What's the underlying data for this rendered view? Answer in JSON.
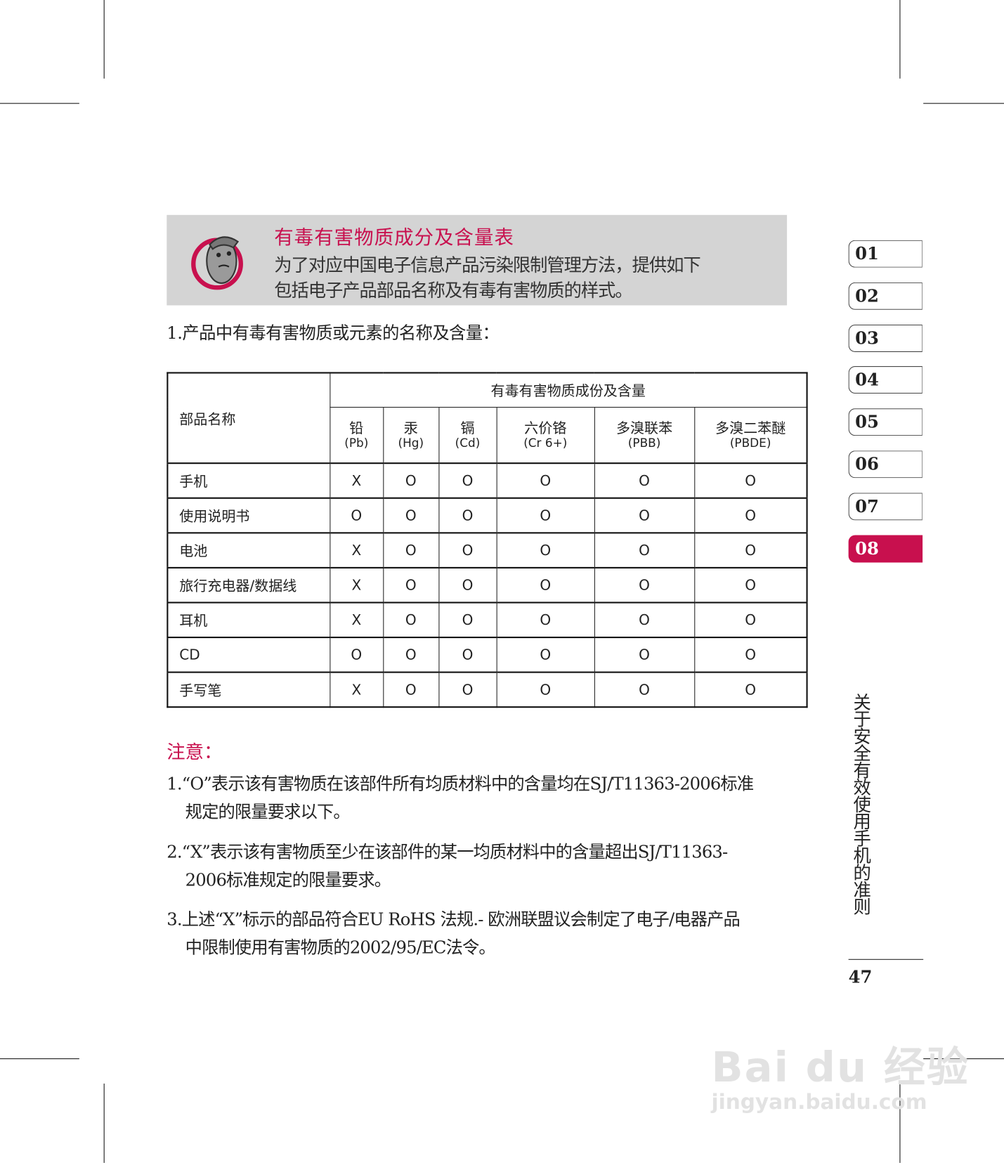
{
  "banner": {
    "title": "有毒有害物质成分及含量表",
    "line1": "为了对应中国电子信息产品污染限制管理方法，提供如下",
    "line2": "包括电子产品部品名称及有毒有害物质的样式。",
    "accent_color": "#c8104e"
  },
  "section_heading": "1.产品中有毒有害物质或元素的名称及含量：",
  "table": {
    "part_header": "部品名称",
    "group_header": "有毒有害物质成份及含量",
    "columns": [
      {
        "cn": "铅",
        "sub": "(Pb)"
      },
      {
        "cn": "汞",
        "sub": "(Hg)"
      },
      {
        "cn": "镉",
        "sub": "(Cd)"
      },
      {
        "cn": "六价铬",
        "sub": "(Cr 6+)"
      },
      {
        "cn": "多溴联苯",
        "sub": "(PBB)"
      },
      {
        "cn": "多溴二苯醚",
        "sub": "(PBDE)"
      }
    ],
    "rows": [
      {
        "name": "手机",
        "values": [
          "X",
          "O",
          "O",
          "O",
          "O",
          "O"
        ]
      },
      {
        "name": "使用说明书",
        "values": [
          "O",
          "O",
          "O",
          "O",
          "O",
          "O"
        ]
      },
      {
        "name": "电池",
        "values": [
          "X",
          "O",
          "O",
          "O",
          "O",
          "O"
        ]
      },
      {
        "name": "旅行充电器/数据线",
        "values": [
          "X",
          "O",
          "O",
          "O",
          "O",
          "O"
        ]
      },
      {
        "name": "耳机",
        "values": [
          "X",
          "O",
          "O",
          "O",
          "O",
          "O"
        ]
      },
      {
        "name": "CD",
        "values": [
          "O",
          "O",
          "O",
          "O",
          "O",
          "O"
        ]
      },
      {
        "name": "手写笔",
        "values": [
          "X",
          "O",
          "O",
          "O",
          "O",
          "O"
        ]
      }
    ]
  },
  "notes": {
    "title": "注意：",
    "items": [
      {
        "line1": "1.“O”表示该有害物质在该部件所有均质材料中的含量均在SJ/T11363-2006标准",
        "line2": "规定的限量要求以下。"
      },
      {
        "line1": "2.“X”表示该有害物质至少在该部件的某一均质材料中的含量超出SJ/T11363-",
        "line2": "2006标准规定的限量要求。"
      },
      {
        "line1": "3.上述“X”标示的部品符合EU RoHS 法规.- 欧洲联盟议会制定了电子/电器产品",
        "line2": "中限制使用有害物质的2002/95/EC法令。"
      }
    ]
  },
  "chapter_tabs": [
    "01",
    "02",
    "03",
    "04",
    "05",
    "06",
    "07",
    "08"
  ],
  "active_tab": "08",
  "chapter_title": "关于安全有效使用手机的准则",
  "page_number": "47",
  "watermark": {
    "line1": "Bai du 经验",
    "line2": "jingyan.baidu.com"
  }
}
